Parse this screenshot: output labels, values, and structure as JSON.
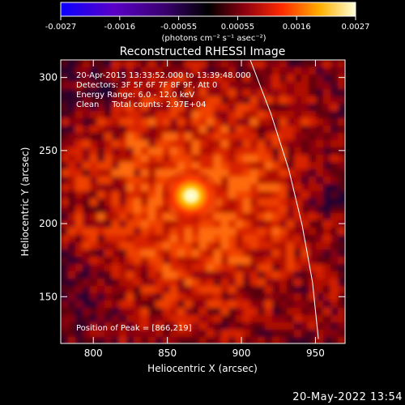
{
  "chart_data": {
    "type": "heatmap",
    "title": "Reconstructed RHESSI Image",
    "xlabel": "Heliocentric X (arcsec)",
    "ylabel": "Heliocentric Y (arcsec)",
    "xlim": [
      778,
      970
    ],
    "ylim": [
      118,
      312
    ],
    "xticks": [
      800,
      850,
      900,
      950
    ],
    "yticks": [
      150,
      200,
      250,
      300
    ],
    "colorbar": {
      "range": [
        -0.0027,
        0.0027
      ],
      "ticks": [
        "-0.0027",
        "-0.0016",
        "-0.00055",
        "0.00055",
        "0.0016",
        "0.0027"
      ],
      "label": "(photons cm⁻² s⁻¹ asec⁻²)"
    },
    "peak": {
      "x": 866,
      "y": 219,
      "value": 0.0027
    },
    "background_level": 0.0008,
    "annotations": [
      "20-Apr-2015 13:33:52.000 to 13:39:48.000",
      "Detectors: 3F 5F 6F 7F 8F 9F, Att 0",
      "Energy Range: 6.0 - 12.0 keV",
      "Clean     Total counts: 2.97E+04"
    ],
    "peak_label": "Position of Peak = [866,219]",
    "limb_curve": [
      [
        906,
        312
      ],
      [
        920,
        275
      ],
      [
        932,
        237
      ],
      [
        941,
        199
      ],
      [
        948,
        160
      ],
      [
        952,
        121
      ]
    ]
  },
  "footer": {
    "timestamp": "20-May-2022 13:54"
  }
}
